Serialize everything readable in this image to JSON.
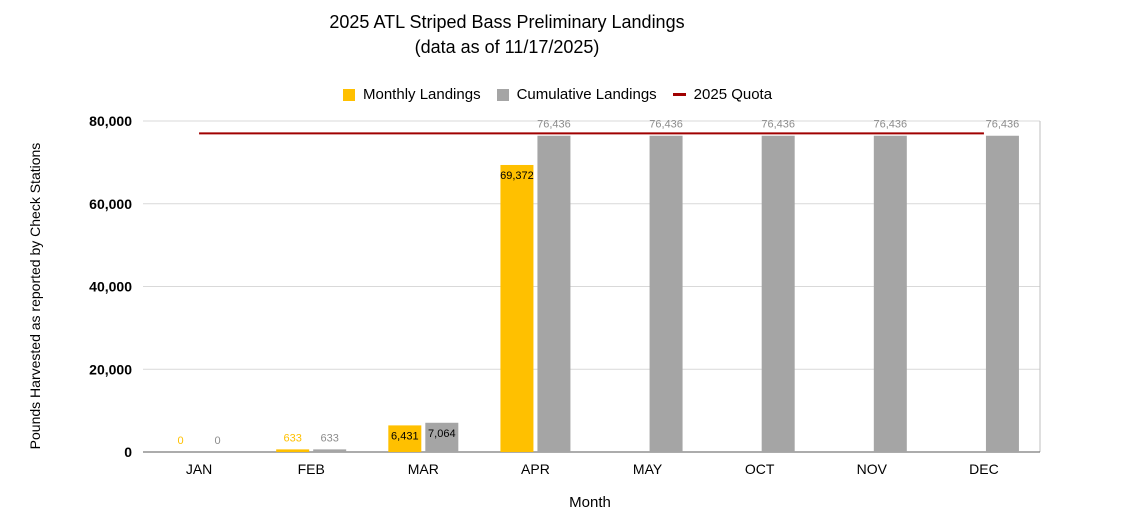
{
  "chart_data": {
    "type": "bar",
    "title_line1": "2025 ATL Striped Bass Preliminary Landings",
    "title_line2": "(data as of  11/17/2025)",
    "xlabel": "Month",
    "ylabel": "Pounds Harvested as reported by Check Stations",
    "categories": [
      "JAN",
      "FEB",
      "MAR",
      "APR",
      "MAY",
      "OCT",
      "NOV",
      "DEC"
    ],
    "series": [
      {
        "name": "Monthly Landings",
        "color": "#FFC000",
        "values": [
          0,
          633,
          6431,
          69372,
          null,
          null,
          null,
          null
        ],
        "labels": [
          "0",
          "633",
          "6,431",
          "69,372",
          null,
          null,
          null,
          null
        ]
      },
      {
        "name": "Cumulative Landings",
        "color": "#A5A5A5",
        "values": [
          0,
          633,
          7064,
          76436,
          76436,
          76436,
          76436,
          76436
        ],
        "labels": [
          "0",
          "633",
          "7,064",
          "76,436",
          "76,436",
          "76,436",
          "76,436",
          "76,436"
        ]
      }
    ],
    "quota": {
      "name": "2025 Quota",
      "color": "#A00000",
      "value": 77000
    },
    "ylim": [
      0,
      80000
    ],
    "yticks": [
      0,
      20000,
      40000,
      60000,
      80000
    ],
    "ytick_labels": [
      "0",
      "20,000",
      "40,000",
      "60,000",
      "80,000"
    ],
    "grid": true,
    "legend_position": "top-center"
  }
}
